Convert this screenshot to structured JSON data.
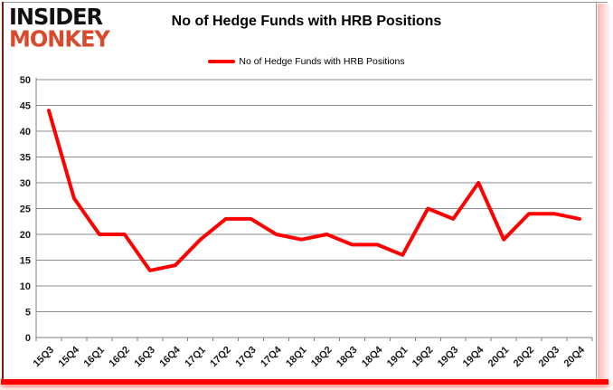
{
  "logo": {
    "line1": "INSIDER",
    "line2": "MONKEY"
  },
  "header": {
    "title": "No of Hedge Funds with HRB Positions"
  },
  "legend": {
    "label": "No of Hedge Funds with HRB Positions"
  },
  "chart_data": {
    "type": "line",
    "title": "No of Hedge Funds with HRB Positions",
    "categories": [
      "15Q3",
      "15Q4",
      "16Q1",
      "16Q2",
      "16Q3",
      "16Q4",
      "17Q1",
      "17Q2",
      "17Q3",
      "17Q4",
      "18Q1",
      "18Q2",
      "18Q3",
      "18Q4",
      "19Q1",
      "19Q2",
      "19Q3",
      "19Q4",
      "20Q1",
      "20Q2",
      "20Q3",
      "20Q4"
    ],
    "series": [
      {
        "name": "No of Hedge Funds with HRB Positions",
        "color": "#fe0000",
        "values": [
          44,
          27,
          20,
          20,
          13,
          14,
          19,
          23,
          23,
          20,
          19,
          20,
          18,
          18,
          16,
          25,
          23,
          30,
          19,
          24,
          24,
          23
        ]
      }
    ],
    "ylim": [
      0,
      50
    ],
    "ytick_step": 5,
    "grid": true,
    "legend_position": "top-center",
    "x_label_rotation": -45
  },
  "colors": {
    "line": "#fe0000",
    "grid": "#8c8c8c",
    "axis": "#7f7f7f",
    "tick_text": "#1a1a1a",
    "accent_bar": "#fe0000",
    "left_edge": "#7a1c10",
    "logo_red": "#d9492b"
  }
}
